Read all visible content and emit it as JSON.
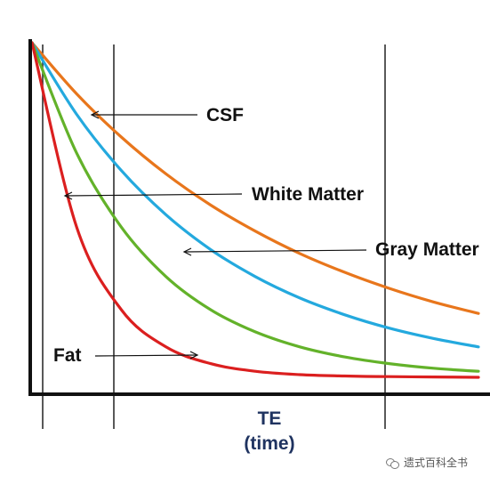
{
  "chart_data": {
    "type": "line",
    "title": "",
    "xlabel": [
      "TE",
      "(time)"
    ],
    "ylabel": "",
    "grid": false,
    "x": [
      0,
      2,
      4,
      6,
      8,
      10,
      12,
      14,
      16,
      18,
      20
    ],
    "series": [
      {
        "name": "CSF",
        "color": "#e8761c",
        "values": [
          1.0,
          0.847,
          0.718,
          0.608,
          0.515,
          0.437,
          0.37,
          0.314,
          0.266,
          0.225,
          0.191
        ]
      },
      {
        "name": "Gray Matter",
        "color": "#24a9de",
        "values": [
          1.0,
          0.786,
          0.618,
          0.486,
          0.382,
          0.301,
          0.237,
          0.187,
          0.147,
          0.116,
          0.091
        ]
      },
      {
        "name": "White Matter",
        "color": "#63b22a",
        "values": [
          1.0,
          0.67,
          0.449,
          0.301,
          0.202,
          0.136,
          0.091,
          0.061,
          0.041,
          0.027,
          0.018
        ]
      },
      {
        "name": "Fat",
        "color": "#db1f1f",
        "values": [
          1.0,
          0.449,
          0.202,
          0.091,
          0.041,
          0.018,
          0.008,
          0.004,
          0.002,
          0.001,
          0.0
        ]
      }
    ],
    "annotations": [
      "CSF",
      "White Matter",
      "Gray Matter",
      "Fat"
    ]
  },
  "watermark": {
    "text": "遗式百科全书",
    "icon": "wechat-icon"
  }
}
